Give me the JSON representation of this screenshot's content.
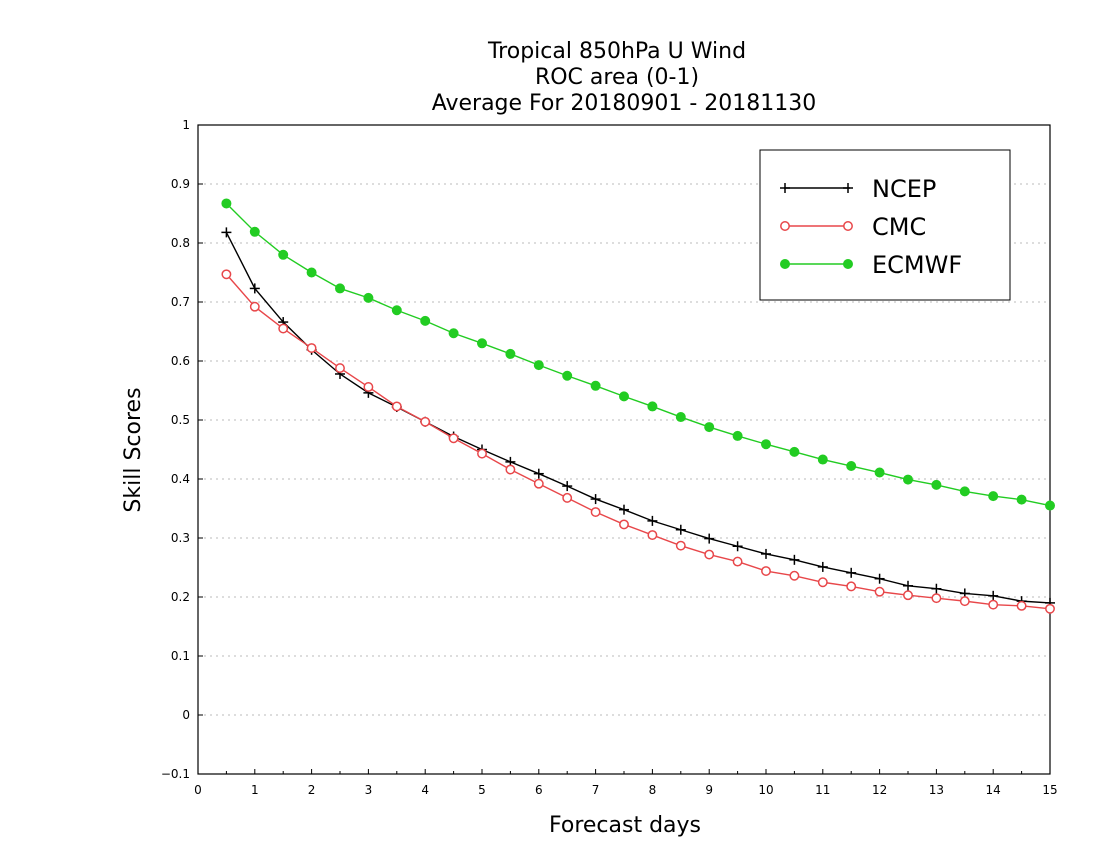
{
  "chart_data": {
    "type": "line",
    "title": [
      "Tropical 850hPa U Wind",
      "ROC area (0-1)",
      "Average For 20180901 - 20181130"
    ],
    "xlabel": "Forecast days",
    "ylabel": "Skill Scores",
    "xlim": [
      0,
      15
    ],
    "ylim": [
      -0.1,
      1
    ],
    "xticks": [
      0,
      1,
      2,
      3,
      4,
      5,
      6,
      7,
      8,
      9,
      10,
      11,
      12,
      13,
      14,
      15
    ],
    "yticks": [
      -0.1,
      0,
      0.1,
      0.2,
      0.3,
      0.4,
      0.5,
      0.6,
      0.7,
      0.8,
      0.9,
      1
    ],
    "grid": "horizontal-dotted",
    "legend_position": "top-right",
    "x": [
      0.5,
      1,
      1.5,
      2,
      2.5,
      3,
      3.5,
      4,
      4.5,
      5,
      5.5,
      6,
      6.5,
      7,
      7.5,
      8,
      8.5,
      9,
      9.5,
      10,
      10.5,
      11,
      11.5,
      12,
      12.5,
      13,
      13.5,
      14,
      14.5,
      15
    ],
    "series": [
      {
        "name": "NCEP",
        "color": "#000000",
        "marker": "plus",
        "values": [
          0.818,
          0.723,
          0.666,
          0.619,
          0.578,
          0.546,
          0.522,
          0.497,
          0.472,
          0.45,
          0.429,
          0.409,
          0.388,
          0.366,
          0.348,
          0.329,
          0.314,
          0.299,
          0.286,
          0.273,
          0.263,
          0.251,
          0.241,
          0.231,
          0.219,
          0.214,
          0.206,
          0.202,
          0.193,
          0.19
        ]
      },
      {
        "name": "CMC",
        "color": "#e8474a",
        "marker": "open-circle",
        "values": [
          0.747,
          0.692,
          0.655,
          0.622,
          0.588,
          0.556,
          0.523,
          0.497,
          0.469,
          0.443,
          0.416,
          0.392,
          0.368,
          0.344,
          0.323,
          0.305,
          0.287,
          0.272,
          0.26,
          0.244,
          0.236,
          0.225,
          0.218,
          0.209,
          0.203,
          0.198,
          0.193,
          0.187,
          0.185,
          0.18
        ]
      },
      {
        "name": "ECMWF",
        "color": "#22cc22",
        "marker": "filled-circle",
        "values": [
          0.867,
          0.819,
          0.78,
          0.75,
          0.723,
          0.707,
          0.686,
          0.668,
          0.647,
          0.63,
          0.612,
          0.593,
          0.575,
          0.558,
          0.54,
          0.523,
          0.505,
          0.488,
          0.473,
          0.459,
          0.446,
          0.433,
          0.422,
          0.411,
          0.399,
          0.39,
          0.379,
          0.371,
          0.365,
          0.355
        ]
      }
    ]
  }
}
